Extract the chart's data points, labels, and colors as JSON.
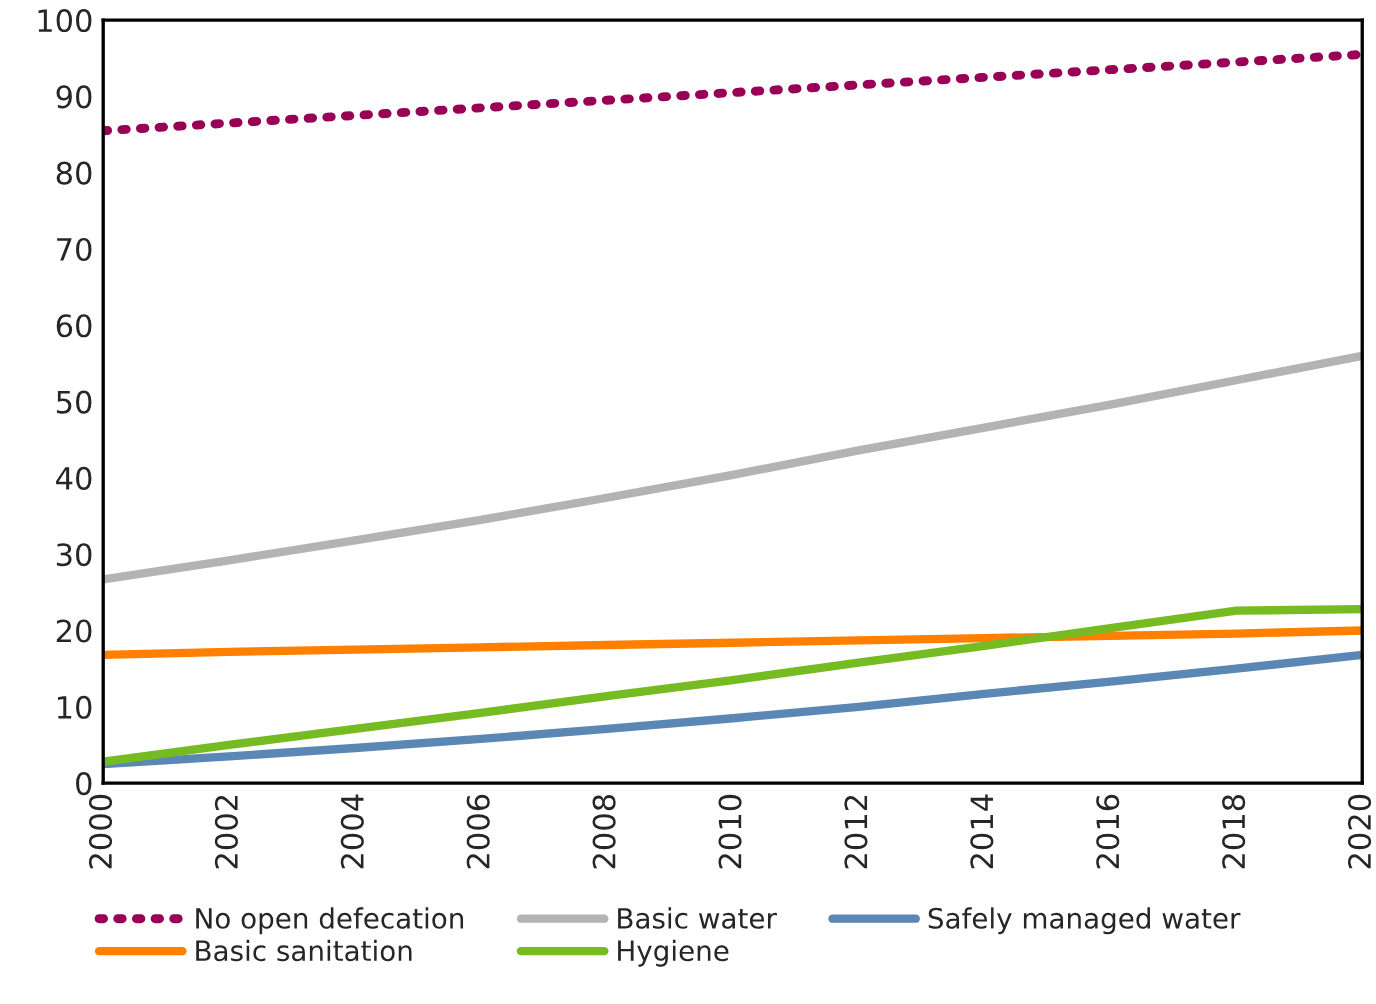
{
  "chart_data": {
    "type": "line",
    "x": [
      2000,
      2002,
      2004,
      2006,
      2008,
      2010,
      2012,
      2014,
      2016,
      2018,
      2020
    ],
    "series": [
      {
        "name": "No open defecation",
        "color": "#990055",
        "line_style": "dotted",
        "values": [
          85.5,
          86.5,
          87.5,
          88.5,
          89.5,
          90.5,
          91.5,
          92.5,
          93.5,
          94.5,
          95.5
        ]
      },
      {
        "name": "Basic water",
        "color": "#b3b3b3",
        "values": [
          26.7,
          29.2,
          31.8,
          34.5,
          37.4,
          40.4,
          43.6,
          46.6,
          49.6,
          52.8,
          56.0
        ]
      },
      {
        "name": "Safely managed water",
        "color": "#5b87b5",
        "values": [
          2.5,
          3.5,
          4.6,
          5.8,
          7.1,
          8.5,
          10.0,
          11.7,
          13.3,
          15.0,
          16.8
        ]
      },
      {
        "name": "Basic sanitation",
        "color": "#ff8000",
        "values": [
          16.8,
          17.2,
          17.5,
          17.8,
          18.1,
          18.4,
          18.7,
          19.0,
          19.3,
          19.6,
          20.0
        ]
      },
      {
        "name": "Hygiene",
        "color": "#77bb22",
        "values": [
          2.8,
          5.0,
          7.1,
          9.2,
          11.4,
          13.5,
          15.8,
          18.0,
          20.3,
          22.6,
          22.8
        ]
      }
    ],
    "xlim": [
      2000,
      2020
    ],
    "xticks": [
      2000,
      2002,
      2004,
      2006,
      2008,
      2010,
      2012,
      2014,
      2016,
      2018,
      2020
    ],
    "ylim": [
      0,
      100
    ],
    "yticks": [
      0,
      10,
      20,
      30,
      40,
      50,
      60,
      70,
      80,
      90,
      100
    ],
    "grid": false,
    "legend": "bottom",
    "marker": "none"
  }
}
